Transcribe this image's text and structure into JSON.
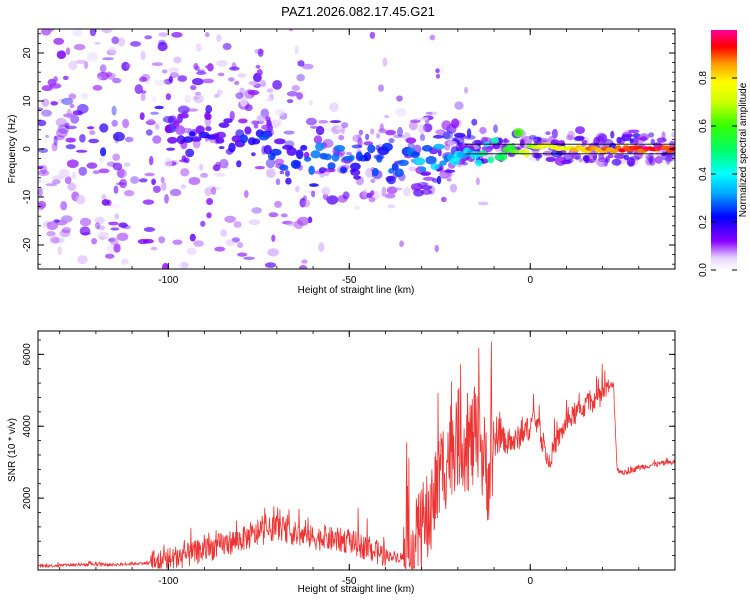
{
  "title": "PAZ1.2026.082.17.45.G21",
  "chart_data": [
    {
      "type": "heatmap",
      "xlabel": "Height of straight line (km)",
      "ylabel": "Frequency (Hz)",
      "xlim": [
        -136,
        40
      ],
      "ylim": [
        -25,
        25
      ],
      "xticks": [
        -100,
        -50,
        0
      ],
      "xtick_labels": [
        "-100",
        "-50",
        "0"
      ],
      "yticks": [
        -20,
        -10,
        0,
        10,
        20
      ],
      "ytick_labels": [
        "-20",
        "-10",
        "0",
        "10",
        "20"
      ],
      "ridge_lines_hz": [
        1,
        -1
      ],
      "ridge": [
        {
          "x": -95,
          "freq": 4,
          "amp": 0.15
        },
        {
          "x": -85,
          "freq": 4,
          "amp": 0.18
        },
        {
          "x": -75,
          "freq": 1,
          "amp": 0.2
        },
        {
          "x": -65,
          "freq": -2,
          "amp": 0.22
        },
        {
          "x": -55,
          "freq": -2,
          "amp": 0.25
        },
        {
          "x": -45,
          "freq": -3,
          "amp": 0.22
        },
        {
          "x": -35,
          "freq": -2,
          "amp": 0.28
        },
        {
          "x": -25,
          "freq": -1,
          "amp": 0.32
        },
        {
          "x": -15,
          "freq": 0,
          "amp": 0.38
        },
        {
          "x": -5,
          "freq": 1,
          "amp": 0.62
        },
        {
          "x": 5,
          "freq": 0.5,
          "amp": 0.75
        },
        {
          "x": 15,
          "freq": 0,
          "amp": 0.82
        },
        {
          "x": 25,
          "freq": 0,
          "amp": 0.9
        },
        {
          "x": 40,
          "freq": 0,
          "amp": 0.95
        }
      ],
      "colorbar": {
        "label": "Normalized spectral amplitude",
        "ticks": [
          0.0,
          0.2,
          0.4,
          0.6,
          0.8
        ],
        "tick_labels": [
          "0.0",
          "0.2",
          "0.4",
          "0.6",
          "0.8"
        ]
      }
    },
    {
      "type": "line",
      "xlabel": "Height of straight line (km)",
      "ylabel": "SNR (10 * v/v)",
      "xlim": [
        -136,
        40
      ],
      "ylim": [
        0,
        6650
      ],
      "xticks": [
        -100,
        -50,
        0
      ],
      "xtick_labels": [
        "-100",
        "-50",
        "0"
      ],
      "yticks": [
        2000,
        4000,
        6000
      ],
      "ytick_labels": [
        "2000",
        "4000",
        "6000"
      ],
      "series": [
        {
          "name": "SNR",
          "color": "#ee3333",
          "x": [
            -136,
            -125,
            -115,
            -105,
            -95,
            -85,
            -75,
            -70,
            -65,
            -60,
            -55,
            -50,
            -45,
            -40,
            -35,
            -32,
            -28,
            -25,
            -22,
            -20,
            -17,
            -15,
            -13,
            -11,
            -10,
            -8,
            -6,
            -4,
            -2,
            0,
            1,
            3,
            5,
            7,
            10,
            13,
            16,
            19,
            22,
            23,
            24,
            26,
            30,
            35,
            40
          ],
          "y": [
            100,
            150,
            150,
            200,
            400,
            700,
            1000,
            1200,
            1000,
            900,
            850,
            800,
            600,
            400,
            350,
            500,
            1500,
            2600,
            3400,
            3700,
            3500,
            3600,
            3100,
            2500,
            3400,
            3700,
            3500,
            3600,
            3800,
            4000,
            4300,
            3700,
            3000,
            3500,
            4100,
            4400,
            4600,
            4800,
            5100,
            5200,
            2800,
            2700,
            2850,
            2950,
            3000
          ]
        }
      ]
    }
  ]
}
